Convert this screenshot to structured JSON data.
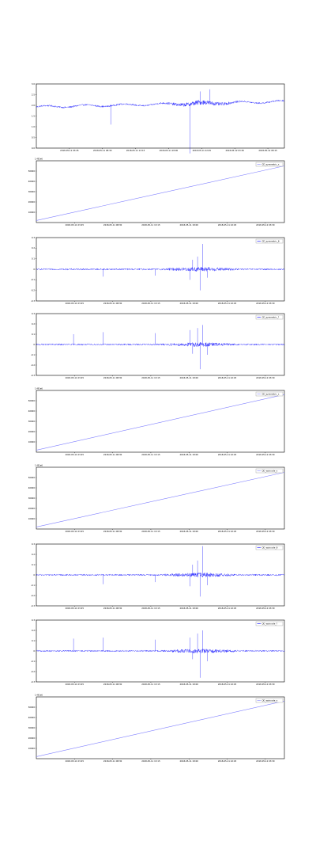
{
  "chart_data": [
    {
      "type": "line",
      "mode": "noisy",
      "color": "#0000ff",
      "ylim": [
        0,
        3.0
      ],
      "yticks": [
        0.0,
        0.5,
        1.0,
        1.5,
        2.0,
        2.5,
        3.0
      ],
      "ytick_labels": [
        "0.0",
        "0.5",
        "1.0",
        "1.5",
        "2.0",
        "2.5",
        "3.0"
      ],
      "xtick_labels": [
        "2018-05-11 03:45",
        "2018-05-11 08:30",
        "2018-05-11 13:15",
        "2018-05-11 18:00",
        "2018-05-11 22:45",
        "2018-05-12 03:30",
        "2018-05-12 08:15"
      ],
      "baseline": 2.05,
      "spikes": [
        [
          0.3,
          -0.95
        ],
        [
          0.62,
          -2.3
        ],
        [
          0.66,
          0.6
        ],
        [
          0.7,
          0.7
        ]
      ]
    },
    {
      "type": "line",
      "mode": "linear",
      "color": "#8080ff",
      "legend": "GD_symmetric_x",
      "offset_label": "1.492e6",
      "ylim": [
        0,
        6
      ],
      "yticks": [
        1,
        2,
        3,
        4,
        5
      ],
      "ytick_labels": [
        "10000",
        "20000",
        "30000",
        "40000",
        "50000"
      ],
      "xtick_labels": [
        "2018-05-11 03:45",
        "2018-05-11 08:30",
        "2018-05-11 13:15",
        "2018-05-11 18:00",
        "2018-05-11 22:45",
        "2018-05-12 03:30"
      ],
      "y_start": 0.2,
      "y_end": 5.5
    },
    {
      "type": "line",
      "mode": "noisy",
      "color": "#0000ff",
      "legend": "GD_symmetric_θ",
      "ylim": [
        -0.3,
        0.3
      ],
      "yticks": [
        -0.3,
        -0.2,
        -0.1,
        0.0,
        0.1,
        0.2,
        0.3
      ],
      "ytick_labels": [
        "-0.3",
        "-0.2",
        "-0.1",
        "0",
        "0.1",
        "0.2",
        "0.3"
      ],
      "xtick_labels": [
        "2018-05-11 03:45",
        "2018-05-11 08:30",
        "2018-05-11 13:15",
        "2018-05-11 18:00",
        "2018-05-11 22:45",
        "2018-05-12 03:30"
      ],
      "baseline": 0.0,
      "spikes": [
        [
          0.27,
          -0.07
        ],
        [
          0.48,
          -0.06
        ],
        [
          0.62,
          -0.1
        ],
        [
          0.63,
          0.09
        ],
        [
          0.65,
          0.12
        ],
        [
          0.66,
          -0.2
        ],
        [
          0.67,
          0.24
        ],
        [
          0.69,
          -0.08
        ]
      ]
    },
    {
      "type": "line",
      "mode": "noisy",
      "color": "#0000ff",
      "legend": "GD_symmetric_?",
      "ylim": [
        -0.3,
        0.3
      ],
      "yticks": [
        -0.3,
        -0.2,
        -0.1,
        0.0,
        0.1,
        0.2,
        0.3
      ],
      "ytick_labels": [
        "-0.3",
        "-0.2",
        "-0.1",
        "0",
        "0.1",
        "0.2",
        "0.3"
      ],
      "xtick_labels": [
        "2018-05-11 03:45",
        "2018-05-11 08:30",
        "2018-05-11 13:15",
        "2018-05-11 18:00",
        "2018-05-11 22:45",
        "2018-05-12 03:30"
      ],
      "baseline": 0.0,
      "spikes": [
        [
          0.15,
          0.1
        ],
        [
          0.27,
          0.12
        ],
        [
          0.48,
          0.11
        ],
        [
          0.62,
          0.14
        ],
        [
          0.63,
          -0.09
        ],
        [
          0.65,
          0.16
        ],
        [
          0.66,
          -0.24
        ],
        [
          0.67,
          0.19
        ],
        [
          0.69,
          -0.1
        ]
      ]
    },
    {
      "type": "line",
      "mode": "linear",
      "color": "#8080ff",
      "legend": "GD_symmetric_x",
      "offset_label": "1.491e6",
      "ylim": [
        0,
        6
      ],
      "yticks": [
        1,
        2,
        3,
        4,
        5
      ],
      "ytick_labels": [
        "10000",
        "20000",
        "30000",
        "40000",
        "50000"
      ],
      "xtick_labels": [
        "2018-05-11 03:45",
        "2018-05-11 08:30",
        "2018-05-11 13:15",
        "2018-05-11 18:00",
        "2018-05-11 22:45",
        "2018-05-12 03:30"
      ],
      "y_start": 0.2,
      "y_end": 5.6
    },
    {
      "type": "line",
      "mode": "linear",
      "color": "#8080ff",
      "legend": "OD_asincode_x",
      "offset_label": "1.491e6",
      "ylim": [
        0,
        6
      ],
      "yticks": [
        1,
        2,
        3,
        4,
        5
      ],
      "ytick_labels": [
        "10000",
        "20000",
        "30000",
        "40000",
        "50000"
      ],
      "xtick_labels": [
        "2018-05-11 03:45",
        "2018-05-11 08:30",
        "2018-05-11 13:15",
        "2018-05-11 18:00",
        "2018-05-11 22:45",
        "2018-05-12 03:30"
      ],
      "y_start": 0.2,
      "y_end": 5.5
    },
    {
      "type": "line",
      "mode": "noisy",
      "color": "#0000ff",
      "legend": "OD_asincode_θ",
      "ylim": [
        -0.3,
        0.3
      ],
      "yticks": [
        -0.3,
        -0.2,
        -0.1,
        0.0,
        0.1,
        0.2,
        0.3
      ],
      "ytick_labels": [
        "-0.3",
        "-0.2",
        "-0.1",
        "0",
        "0.1",
        "0.2",
        "0.3"
      ],
      "xtick_labels": [
        "2018-05-11 03:45",
        "2018-05-11 08:30",
        "2018-05-11 13:15",
        "2018-05-11 18:00",
        "2018-05-11 22:45",
        "2018-05-12 03:30"
      ],
      "baseline": 0.0,
      "spikes": [
        [
          0.27,
          -0.09
        ],
        [
          0.48,
          -0.07
        ],
        [
          0.62,
          -0.11
        ],
        [
          0.63,
          0.1
        ],
        [
          0.65,
          0.14
        ],
        [
          0.66,
          -0.21
        ],
        [
          0.67,
          0.28
        ],
        [
          0.69,
          -0.1
        ]
      ]
    },
    {
      "type": "line",
      "mode": "noisy",
      "color": "#0000ff",
      "legend": "OD_asincode_?",
      "ylim": [
        -0.3,
        0.3
      ],
      "yticks": [
        -0.3,
        -0.2,
        -0.1,
        0.0,
        0.1,
        0.2,
        0.3
      ],
      "ytick_labels": [
        "-0.3",
        "-0.2",
        "-0.1",
        "0",
        "0.1",
        "0.2",
        "0.3"
      ],
      "xtick_labels": [
        "2018-05-11 03:45",
        "2018-05-11 08:30",
        "2018-05-11 13:15",
        "2018-05-11 18:00",
        "2018-05-11 22:45",
        "2018-05-12 03:30"
      ],
      "baseline": 0.0,
      "spikes": [
        [
          0.15,
          0.12
        ],
        [
          0.27,
          0.13
        ],
        [
          0.48,
          0.11
        ],
        [
          0.62,
          0.13
        ],
        [
          0.63,
          -0.08
        ],
        [
          0.65,
          0.17
        ],
        [
          0.66,
          -0.26
        ],
        [
          0.67,
          0.2
        ],
        [
          0.69,
          -0.1
        ]
      ]
    },
    {
      "type": "line",
      "mode": "linear",
      "color": "#8080ff",
      "legend": "OD_asincode_x",
      "offset_label": "1.491e6",
      "ylim": [
        0,
        6
      ],
      "yticks": [
        1,
        2,
        3,
        4,
        5
      ],
      "ytick_labels": [
        "10000",
        "20000",
        "30000",
        "40000",
        "50000"
      ],
      "xtick_labels": [
        "2018-05-11 03:45",
        "2018-05-11 08:30",
        "2018-05-11 13:15",
        "2018-05-11 18:00",
        "2018-05-11 22:45",
        "2018-05-12 03:30"
      ],
      "y_start": 0.2,
      "y_end": 5.6
    }
  ]
}
